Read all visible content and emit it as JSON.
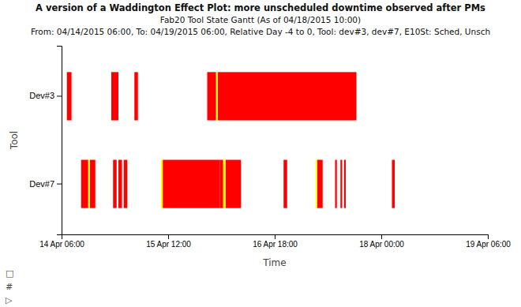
{
  "chart_data": {
    "type": "gantt",
    "orientation": "horizontal",
    "title": "A version of a Waddington Effect Plot: more unscheduled downtime observed after PMs",
    "subtitle": [
      "Fab20 Tool State Gantt  (As of 04/18/2015 10:00)",
      "From: 04/14/2015 06:00, To: 04/19/2015 06:00, Relative Day -4 to 0, Tool: dev#3, dev#7, E10St: Sched, Unsch"
    ],
    "x_label": "Time",
    "y_label": "Tool",
    "categories": [
      "Dev#3",
      "Dev#7"
    ],
    "xlim": [
      0,
      120
    ],
    "xticks": [
      {
        "value": 0,
        "label": "14 Apr 06:00"
      },
      {
        "value": 30,
        "label": "15 Apr 12:00"
      },
      {
        "value": 60,
        "label": "16 Apr 18:00"
      },
      {
        "value": 90,
        "label": "18 Apr 00:00"
      },
      {
        "value": 120,
        "label": "19 Apr 06:00"
      }
    ],
    "grid": false,
    "bars": [
      [
        {
          "start": 1.5,
          "end": 2.8,
          "color": "#ff0000"
        },
        {
          "start": 14.0,
          "end": 14.4,
          "color": "#ffff00"
        },
        {
          "start": 14.0,
          "end": 16.0,
          "color": "#ff0000"
        },
        {
          "start": 20.5,
          "end": 21.5,
          "color": "#ff0000"
        },
        {
          "start": 41.0,
          "end": 43.5,
          "color": "#ff0000"
        },
        {
          "start": 43.5,
          "end": 44.0,
          "color": "#ffff00"
        },
        {
          "start": 44.0,
          "end": 83.0,
          "color": "#ff0000"
        }
      ],
      [
        {
          "start": 5.5,
          "end": 7.5,
          "color": "#ff0000"
        },
        {
          "start": 7.5,
          "end": 8.0,
          "color": "#ffff00"
        },
        {
          "start": 8.0,
          "end": 9.5,
          "color": "#ff0000"
        },
        {
          "start": 14.5,
          "end": 15.5,
          "color": "#ff0000"
        },
        {
          "start": 16.0,
          "end": 17.0,
          "color": "#ff0000"
        },
        {
          "start": 17.5,
          "end": 18.5,
          "color": "#ff0000"
        },
        {
          "start": 28.0,
          "end": 28.5,
          "color": "#ffff00"
        },
        {
          "start": 28.5,
          "end": 44.5,
          "color": "#ff0000"
        },
        {
          "start": 44.5,
          "end": 45.5,
          "color": "#ff0000"
        },
        {
          "start": 45.5,
          "end": 46.2,
          "color": "#ffff00"
        },
        {
          "start": 46.2,
          "end": 50.5,
          "color": "#ff0000"
        },
        {
          "start": 62.5,
          "end": 63.5,
          "color": "#ff0000"
        },
        {
          "start": 71.5,
          "end": 72.0,
          "color": "#ffff00"
        },
        {
          "start": 72.0,
          "end": 73.5,
          "color": "#ff0000"
        },
        {
          "start": 77.0,
          "end": 77.5,
          "color": "#ff0000"
        },
        {
          "start": 78.5,
          "end": 79.0,
          "color": "#ff0000"
        },
        {
          "start": 79.5,
          "end": 80.0,
          "color": "#ff0000"
        },
        {
          "start": 93.0,
          "end": 93.8,
          "color": "#ff0000"
        }
      ]
    ],
    "annotations": [
      "▷",
      "#",
      "□"
    ]
  }
}
